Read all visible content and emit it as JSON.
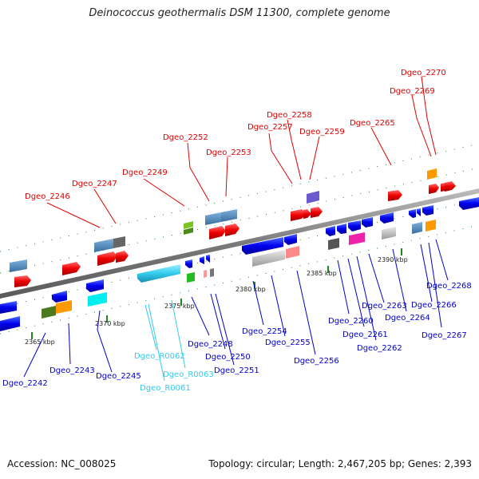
{
  "title": "Deinococcus geothermalis DSM 11300, complete genome",
  "footer": {
    "accession": "Accession: NC_008025",
    "summary": "Topology: circular; Length: 2,467,205 bp; Genes: 2,393"
  },
  "colors": {
    "backbone": "#8a8a8a",
    "tick": "#1d8a1d",
    "label_top": "#e00000",
    "label_bottom": "#0000cc",
    "label_rna": "#33ccee"
  },
  "scale": {
    "ticks": [
      "2365 kbp",
      "2370 kbp",
      "2375 kbp",
      "2380 kbp",
      "2385 kbp",
      "2390 kbp"
    ]
  },
  "genes": {
    "top": [
      "Dgeo_2246",
      "Dgeo_2247",
      "Dgeo_2249",
      "Dgeo_2252",
      "Dgeo_2253",
      "Dgeo_2257",
      "Dgeo_2258",
      "Dgeo_2259",
      "Dgeo_2265",
      "Dgeo_2269",
      "Dgeo_2270"
    ],
    "bottom": [
      "Dgeo_2242",
      "Dgeo_2243",
      "Dgeo_2245",
      "Dgeo_2248",
      "Dgeo_2250",
      "Dgeo_2251",
      "Dgeo_2254",
      "Dgeo_2255",
      "Dgeo_2256",
      "Dgeo_2260",
      "Dgeo_2261",
      "Dgeo_2262",
      "Dgeo_2263",
      "Dgeo_2264",
      "Dgeo_2266",
      "Dgeo_2267",
      "Dgeo_2268"
    ],
    "rna": [
      "Dgeo_R0061",
      "Dgeo_R0062",
      "Dgeo_R0063"
    ]
  }
}
